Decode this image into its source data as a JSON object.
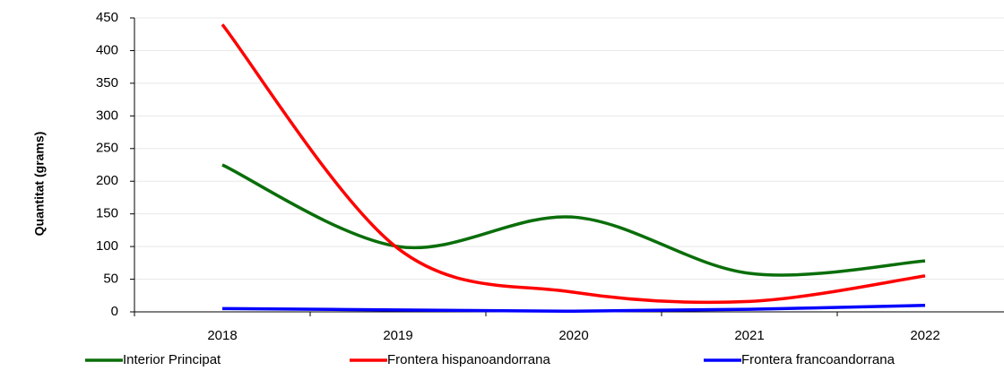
{
  "chart_data": {
    "type": "line",
    "y_label": "Quantitat (grams)",
    "categories": [
      "2018",
      "2019",
      "2020",
      "2021",
      "2022"
    ],
    "series": [
      {
        "name": "Interior Principat",
        "color": "#0a6e0a",
        "values": [
          225,
          100,
          145,
          59,
          78
        ]
      },
      {
        "name": "Frontera hispanoandorrana",
        "color": "#ff0000",
        "values": [
          440,
          97,
          30,
          16,
          55
        ]
      },
      {
        "name": "Frontera francoandorrana",
        "color": "#0000ff",
        "values": [
          5,
          3,
          1,
          4,
          10
        ]
      }
    ],
    "ylim": [
      0,
      450
    ],
    "yticks": [
      0,
      50,
      100,
      150,
      200,
      250,
      300,
      350,
      400,
      450
    ],
    "grid": true,
    "legend": "bottom",
    "smooth": true
  }
}
